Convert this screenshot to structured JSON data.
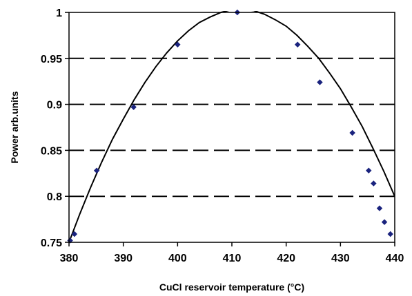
{
  "chart_data": {
    "type": "scatter",
    "title": "",
    "xlabel": "CuCl reservoir temperature (°C)",
    "ylabel": "Power  arb.units",
    "xlim": [
      380,
      440
    ],
    "ylim": [
      0.75,
      1.0
    ],
    "x_ticks": [
      380,
      390,
      400,
      410,
      420,
      430,
      440
    ],
    "x_tick_labels": [
      "380",
      "390",
      "400",
      "410",
      "420",
      "430",
      "440"
    ],
    "y_ticks": [
      0.75,
      0.8,
      0.85,
      0.9,
      0.95,
      1.0
    ],
    "y_tick_labels": [
      "0.75",
      "0.8",
      "0.85",
      "0.9",
      "0.95",
      "1"
    ],
    "grid": "horizontal-dashed",
    "legend": "none",
    "series": [
      {
        "kind": "points",
        "color": "#1a237e",
        "x": [
          380.2,
          381.0,
          385.1,
          391.9,
          400.0,
          411.0,
          422.1,
          426.2,
          432.2,
          435.2,
          436.1,
          437.2,
          438.1,
          439.2
        ],
        "y": [
          0.752,
          0.759,
          0.828,
          0.897,
          0.965,
          1.0,
          0.965,
          0.924,
          0.869,
          0.828,
          0.814,
          0.787,
          0.772,
          0.759
        ]
      },
      {
        "kind": "fit-curve",
        "color": "#000000",
        "x": [
          380.0,
          382.0,
          384.0,
          386.0,
          388.0,
          390.0,
          392.0,
          394.0,
          396.0,
          398.0,
          400.0,
          402.0,
          404.0,
          406.0,
          408.0,
          410.0,
          412.0,
          414.0,
          416.0,
          418.0,
          420.0,
          422.0,
          424.0,
          426.0,
          428.0,
          430.0,
          432.0,
          434.0,
          436.0,
          438.0,
          440.0
        ],
        "y": [
          0.75,
          0.781,
          0.81,
          0.837,
          0.862,
          0.884,
          0.905,
          0.924,
          0.941,
          0.956,
          0.969,
          0.98,
          0.989,
          0.995,
          1.0,
          1.003,
          1.003,
          1.002,
          0.998,
          0.992,
          0.985,
          0.975,
          0.963,
          0.95,
          0.934,
          0.917,
          0.897,
          0.876,
          0.852,
          0.827,
          0.8
        ]
      }
    ]
  }
}
